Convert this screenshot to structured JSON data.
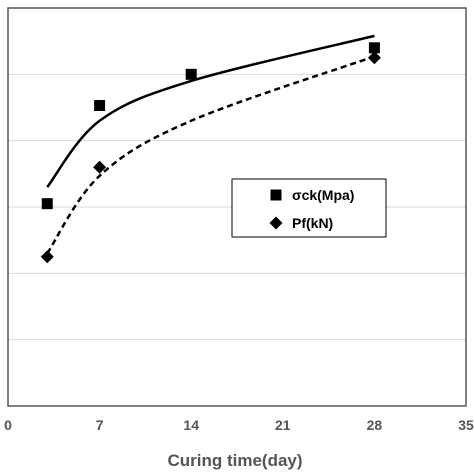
{
  "chart_data": {
    "type": "scatter",
    "title": "",
    "xlabel": "Curing time(day)",
    "ylabel": "",
    "xlim": [
      0,
      35
    ],
    "ylim": [
      0,
      6
    ],
    "xticks": [
      0,
      7,
      14,
      21,
      28,
      35
    ],
    "xtick_labels": [
      "0",
      "7",
      "14",
      "21",
      "28",
      "35"
    ],
    "grid": "horizontal",
    "legend_position": "right-middle",
    "series": [
      {
        "name": "σck(Mpa)",
        "marker": "square",
        "trendline": "solid",
        "x": [
          3,
          7,
          14,
          28
        ],
        "y": [
          3.05,
          4.53,
          5.0,
          5.4
        ],
        "trend": [
          3.3,
          4.3,
          4.9,
          5.58
        ],
        "color": "#000000"
      },
      {
        "name": "Pf(kN)",
        "marker": "diamond",
        "trendline": "dashed",
        "x": [
          3,
          7,
          14,
          28
        ],
        "y": [
          2.25,
          3.6,
          null,
          5.25
        ],
        "trend": [
          2.3,
          3.47,
          4.3,
          5.27
        ],
        "color": "#000000"
      }
    ]
  }
}
